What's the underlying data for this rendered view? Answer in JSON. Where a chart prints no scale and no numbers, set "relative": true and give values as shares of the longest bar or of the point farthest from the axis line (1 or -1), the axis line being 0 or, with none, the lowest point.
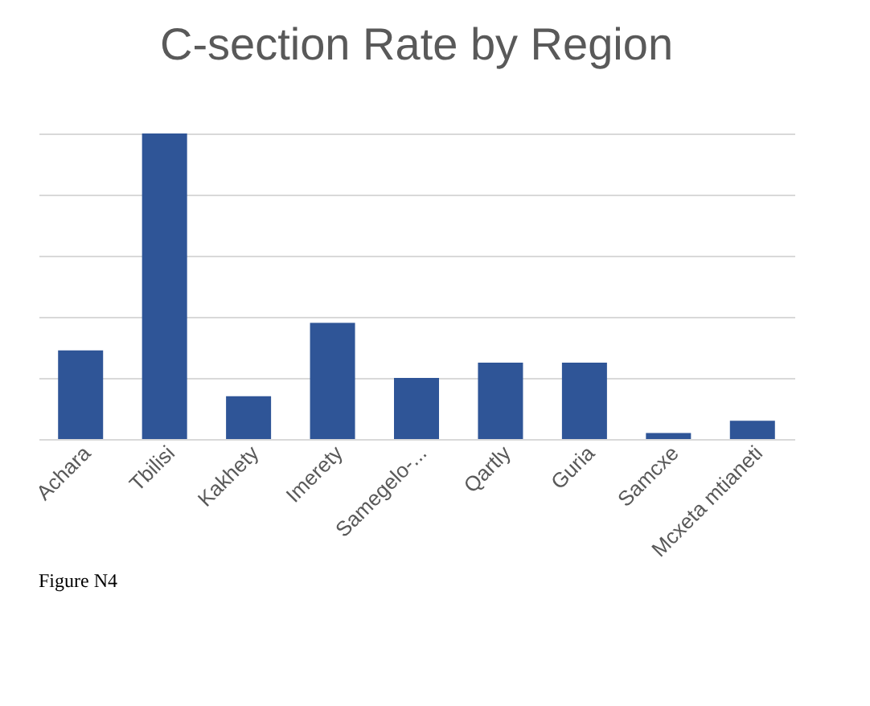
{
  "chart_data": {
    "type": "bar",
    "title": "C-section Rate by Region",
    "categories": [
      "Achara",
      "Tbilisi",
      "Kakhety",
      "Imerety",
      "Samegelo-...",
      "Qartly",
      "Guria",
      "Samcxe",
      "Mcxeta mtianeti"
    ],
    "values": [
      0.29,
      1,
      0.14,
      0.38,
      0.2,
      0.25,
      0.25,
      0.02,
      0.06
    ],
    "color": "#2f5597",
    "relative": true,
    "grid": "y",
    "annotations": [
      "Figure N4"
    ]
  }
}
